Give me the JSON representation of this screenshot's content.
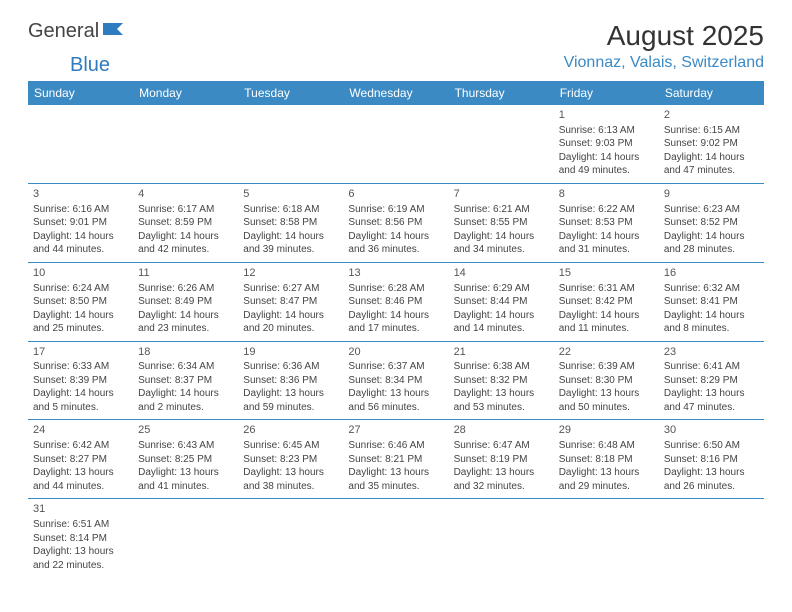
{
  "logo": {
    "text1": "General",
    "text2": "Blue",
    "color_general": "#444444",
    "color_blue": "#2f7bbf"
  },
  "header": {
    "month_title": "August 2025",
    "location": "Vionnaz, Valais, Switzerland"
  },
  "colors": {
    "header_bg": "#3b8ac4",
    "header_text": "#ffffff",
    "cell_border": "#3b8ac4",
    "body_text": "#444444",
    "location_text": "#3b8ac4"
  },
  "weekdays": [
    "Sunday",
    "Monday",
    "Tuesday",
    "Wednesday",
    "Thursday",
    "Friday",
    "Saturday"
  ],
  "weeks": [
    [
      null,
      null,
      null,
      null,
      null,
      {
        "day": "1",
        "sunrise": "Sunrise: 6:13 AM",
        "sunset": "Sunset: 9:03 PM",
        "daylight1": "Daylight: 14 hours",
        "daylight2": "and 49 minutes."
      },
      {
        "day": "2",
        "sunrise": "Sunrise: 6:15 AM",
        "sunset": "Sunset: 9:02 PM",
        "daylight1": "Daylight: 14 hours",
        "daylight2": "and 47 minutes."
      }
    ],
    [
      {
        "day": "3",
        "sunrise": "Sunrise: 6:16 AM",
        "sunset": "Sunset: 9:01 PM",
        "daylight1": "Daylight: 14 hours",
        "daylight2": "and 44 minutes."
      },
      {
        "day": "4",
        "sunrise": "Sunrise: 6:17 AM",
        "sunset": "Sunset: 8:59 PM",
        "daylight1": "Daylight: 14 hours",
        "daylight2": "and 42 minutes."
      },
      {
        "day": "5",
        "sunrise": "Sunrise: 6:18 AM",
        "sunset": "Sunset: 8:58 PM",
        "daylight1": "Daylight: 14 hours",
        "daylight2": "and 39 minutes."
      },
      {
        "day": "6",
        "sunrise": "Sunrise: 6:19 AM",
        "sunset": "Sunset: 8:56 PM",
        "daylight1": "Daylight: 14 hours",
        "daylight2": "and 36 minutes."
      },
      {
        "day": "7",
        "sunrise": "Sunrise: 6:21 AM",
        "sunset": "Sunset: 8:55 PM",
        "daylight1": "Daylight: 14 hours",
        "daylight2": "and 34 minutes."
      },
      {
        "day": "8",
        "sunrise": "Sunrise: 6:22 AM",
        "sunset": "Sunset: 8:53 PM",
        "daylight1": "Daylight: 14 hours",
        "daylight2": "and 31 minutes."
      },
      {
        "day": "9",
        "sunrise": "Sunrise: 6:23 AM",
        "sunset": "Sunset: 8:52 PM",
        "daylight1": "Daylight: 14 hours",
        "daylight2": "and 28 minutes."
      }
    ],
    [
      {
        "day": "10",
        "sunrise": "Sunrise: 6:24 AM",
        "sunset": "Sunset: 8:50 PM",
        "daylight1": "Daylight: 14 hours",
        "daylight2": "and 25 minutes."
      },
      {
        "day": "11",
        "sunrise": "Sunrise: 6:26 AM",
        "sunset": "Sunset: 8:49 PM",
        "daylight1": "Daylight: 14 hours",
        "daylight2": "and 23 minutes."
      },
      {
        "day": "12",
        "sunrise": "Sunrise: 6:27 AM",
        "sunset": "Sunset: 8:47 PM",
        "daylight1": "Daylight: 14 hours",
        "daylight2": "and 20 minutes."
      },
      {
        "day": "13",
        "sunrise": "Sunrise: 6:28 AM",
        "sunset": "Sunset: 8:46 PM",
        "daylight1": "Daylight: 14 hours",
        "daylight2": "and 17 minutes."
      },
      {
        "day": "14",
        "sunrise": "Sunrise: 6:29 AM",
        "sunset": "Sunset: 8:44 PM",
        "daylight1": "Daylight: 14 hours",
        "daylight2": "and 14 minutes."
      },
      {
        "day": "15",
        "sunrise": "Sunrise: 6:31 AM",
        "sunset": "Sunset: 8:42 PM",
        "daylight1": "Daylight: 14 hours",
        "daylight2": "and 11 minutes."
      },
      {
        "day": "16",
        "sunrise": "Sunrise: 6:32 AM",
        "sunset": "Sunset: 8:41 PM",
        "daylight1": "Daylight: 14 hours",
        "daylight2": "and 8 minutes."
      }
    ],
    [
      {
        "day": "17",
        "sunrise": "Sunrise: 6:33 AM",
        "sunset": "Sunset: 8:39 PM",
        "daylight1": "Daylight: 14 hours",
        "daylight2": "and 5 minutes."
      },
      {
        "day": "18",
        "sunrise": "Sunrise: 6:34 AM",
        "sunset": "Sunset: 8:37 PM",
        "daylight1": "Daylight: 14 hours",
        "daylight2": "and 2 minutes."
      },
      {
        "day": "19",
        "sunrise": "Sunrise: 6:36 AM",
        "sunset": "Sunset: 8:36 PM",
        "daylight1": "Daylight: 13 hours",
        "daylight2": "and 59 minutes."
      },
      {
        "day": "20",
        "sunrise": "Sunrise: 6:37 AM",
        "sunset": "Sunset: 8:34 PM",
        "daylight1": "Daylight: 13 hours",
        "daylight2": "and 56 minutes."
      },
      {
        "day": "21",
        "sunrise": "Sunrise: 6:38 AM",
        "sunset": "Sunset: 8:32 PM",
        "daylight1": "Daylight: 13 hours",
        "daylight2": "and 53 minutes."
      },
      {
        "day": "22",
        "sunrise": "Sunrise: 6:39 AM",
        "sunset": "Sunset: 8:30 PM",
        "daylight1": "Daylight: 13 hours",
        "daylight2": "and 50 minutes."
      },
      {
        "day": "23",
        "sunrise": "Sunrise: 6:41 AM",
        "sunset": "Sunset: 8:29 PM",
        "daylight1": "Daylight: 13 hours",
        "daylight2": "and 47 minutes."
      }
    ],
    [
      {
        "day": "24",
        "sunrise": "Sunrise: 6:42 AM",
        "sunset": "Sunset: 8:27 PM",
        "daylight1": "Daylight: 13 hours",
        "daylight2": "and 44 minutes."
      },
      {
        "day": "25",
        "sunrise": "Sunrise: 6:43 AM",
        "sunset": "Sunset: 8:25 PM",
        "daylight1": "Daylight: 13 hours",
        "daylight2": "and 41 minutes."
      },
      {
        "day": "26",
        "sunrise": "Sunrise: 6:45 AM",
        "sunset": "Sunset: 8:23 PM",
        "daylight1": "Daylight: 13 hours",
        "daylight2": "and 38 minutes."
      },
      {
        "day": "27",
        "sunrise": "Sunrise: 6:46 AM",
        "sunset": "Sunset: 8:21 PM",
        "daylight1": "Daylight: 13 hours",
        "daylight2": "and 35 minutes."
      },
      {
        "day": "28",
        "sunrise": "Sunrise: 6:47 AM",
        "sunset": "Sunset: 8:19 PM",
        "daylight1": "Daylight: 13 hours",
        "daylight2": "and 32 minutes."
      },
      {
        "day": "29",
        "sunrise": "Sunrise: 6:48 AM",
        "sunset": "Sunset: 8:18 PM",
        "daylight1": "Daylight: 13 hours",
        "daylight2": "and 29 minutes."
      },
      {
        "day": "30",
        "sunrise": "Sunrise: 6:50 AM",
        "sunset": "Sunset: 8:16 PM",
        "daylight1": "Daylight: 13 hours",
        "daylight2": "and 26 minutes."
      }
    ],
    [
      {
        "day": "31",
        "sunrise": "Sunrise: 6:51 AM",
        "sunset": "Sunset: 8:14 PM",
        "daylight1": "Daylight: 13 hours",
        "daylight2": "and 22 minutes."
      },
      null,
      null,
      null,
      null,
      null,
      null
    ]
  ]
}
